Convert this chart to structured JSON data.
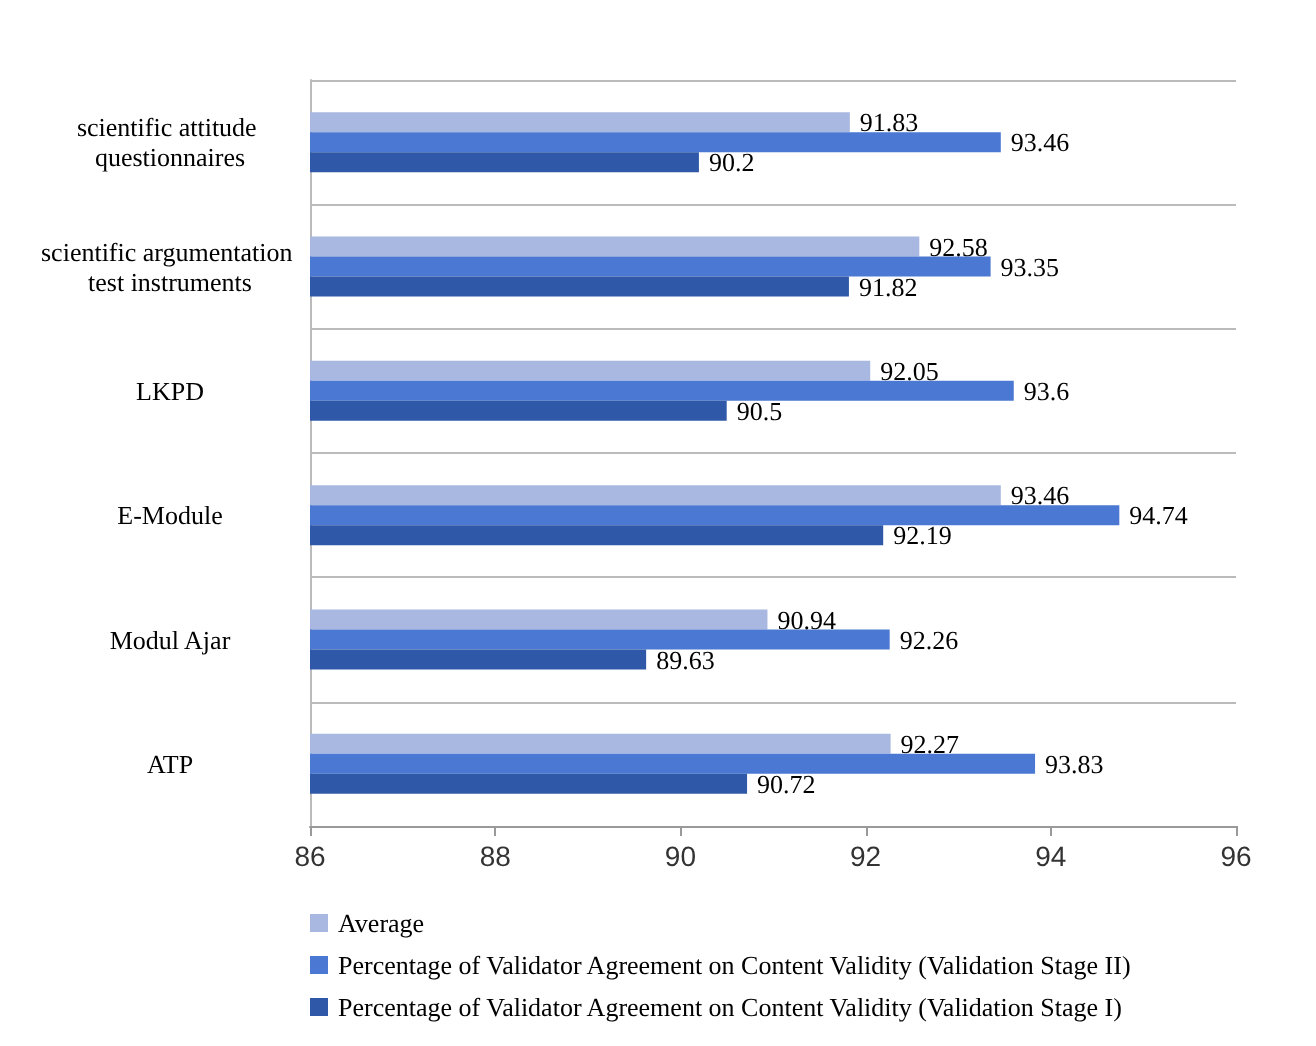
{
  "chart_data": {
    "type": "bar",
    "orientation": "horizontal",
    "categories": [
      "scientific attitude questionnaires",
      "scientific argumentation test instruments",
      "LKPD",
      "E-Module",
      "Modul Ajar",
      "ATP"
    ],
    "series": [
      {
        "name": "Average",
        "color": "#a9b8e0",
        "values": [
          91.83,
          92.58,
          92.05,
          93.46,
          90.94,
          92.27
        ]
      },
      {
        "name": "Percentage of Validator Agreement on Content Validity (Validation Stage II)",
        "color": "#4a78d2",
        "values": [
          93.46,
          93.35,
          93.6,
          94.74,
          92.26,
          93.83
        ]
      },
      {
        "name": "Percentage of Validator Agreement on Content Validity (Validation Stage I)",
        "color": "#2f58a8",
        "values": [
          90.2,
          91.82,
          90.5,
          92.19,
          89.63,
          90.72
        ]
      }
    ],
    "xlim": [
      86,
      96
    ],
    "xticks": [
      86,
      88,
      90,
      92,
      94,
      96
    ],
    "grid": "y",
    "legend": "bottom",
    "data_labels": true
  }
}
